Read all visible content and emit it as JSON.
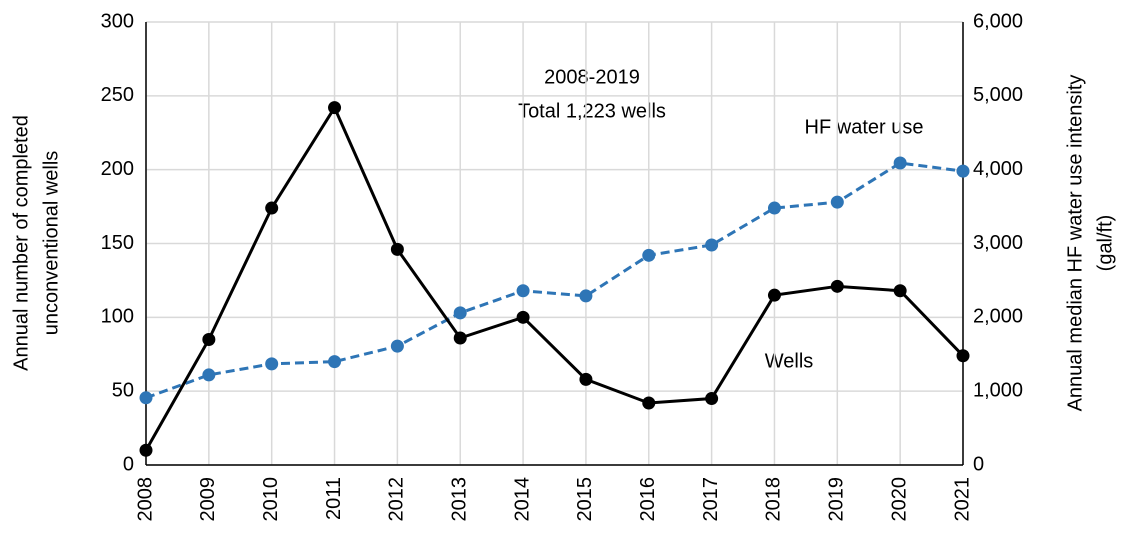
{
  "chart_data": {
    "type": "line",
    "categories": [
      "2008",
      "2009",
      "2010",
      "2011",
      "2012",
      "2013",
      "2014",
      "2015",
      "2016",
      "2017",
      "2018",
      "2019",
      "2020",
      "2021"
    ],
    "series": [
      {
        "name": "Wells",
        "color": "#000000",
        "dashed": false,
        "values": [
          10,
          85,
          174,
          242,
          146,
          86,
          100,
          58,
          42,
          45,
          115,
          121,
          118,
          74
        ]
      },
      {
        "name": "HF water use",
        "color": "#2e75b6",
        "dashed": true,
        "axis": "y2",
        "values": [
          910,
          1220,
          1370,
          1400,
          1610,
          2060,
          2360,
          2290,
          2840,
          2980,
          3480,
          3560,
          4090,
          3980
        ]
      }
    ],
    "ylabel": [
      "Annual number of completed",
      "unconventional wells"
    ],
    "y2label": [
      "Annual median HF water use intensity",
      "(gal/ft)"
    ],
    "annotations": [
      "2008-2019",
      "Total 1,223 wells"
    ],
    "ylim": [
      0,
      300
    ],
    "yticks": [
      0,
      50,
      100,
      150,
      200,
      250,
      300
    ],
    "y2lim": [
      0,
      6000
    ],
    "y2ticks": [
      0,
      {
        "value": 1000,
        "label": "1,000"
      },
      {
        "value": 2000,
        "label": "2,000"
      },
      {
        "value": 3000,
        "label": "3,000"
      },
      {
        "value": 4000,
        "label": "4,000"
      },
      {
        "value": 5000,
        "label": "5,000"
      },
      {
        "value": 6000,
        "label": "6,000"
      }
    ],
    "grid": true
  }
}
